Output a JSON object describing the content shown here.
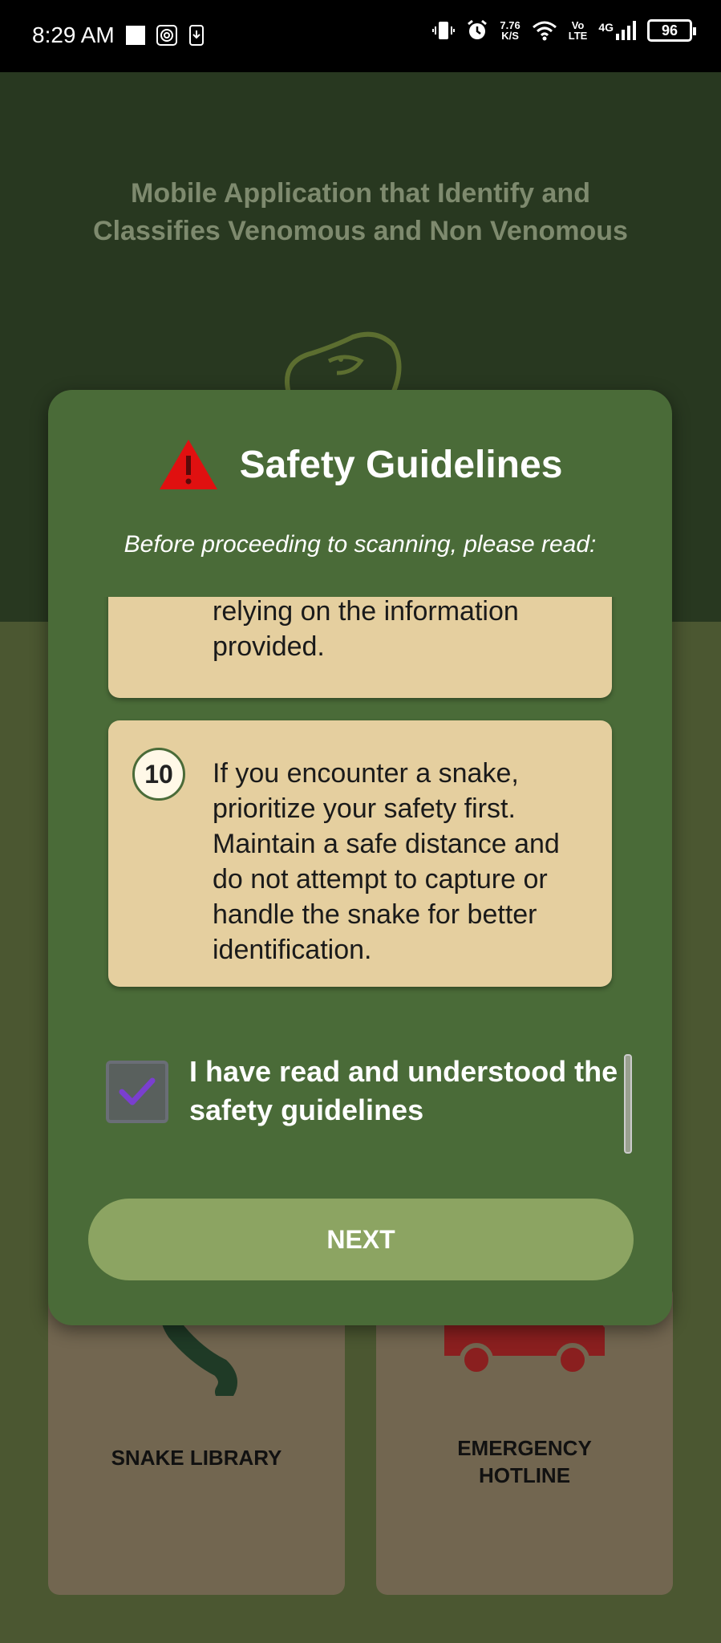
{
  "status_bar": {
    "time": "8:29 AM",
    "net_speed_value": "7.76",
    "net_speed_unit": "K/S",
    "volte_top": "Vo",
    "volte_bottom": "LTE",
    "network": "4G",
    "battery": "96"
  },
  "background": {
    "app_title": "Mobile Application that Identify and Classifies Venomous and Non Venomous"
  },
  "cards": {
    "snake_library": "SNAKE LIBRARY",
    "emergency_hotline_line1": "EMERGENCY",
    "emergency_hotline_line2": "HOTLINE"
  },
  "dialog": {
    "title": "Safety Guidelines",
    "subtitle": "Before proceeding to scanning, please read:",
    "partial_guideline_text": "injury that may occur from relying on the information provided.",
    "guideline_10_number": "10",
    "guideline_10_text": "If you encounter a snake, prioritize your safety first. Maintain a safe distance and do not attempt to capture or handle the snake for better identification.",
    "checkbox_label": "I have read and understood the safety guidelines",
    "next_button": "NEXT"
  },
  "colors": {
    "warning": "#e01010",
    "dialog_bg": "#4a6b38",
    "guideline_bg": "#e5cf9f",
    "next_button": "#8ca462",
    "checkmark": "#7a3fcf"
  }
}
